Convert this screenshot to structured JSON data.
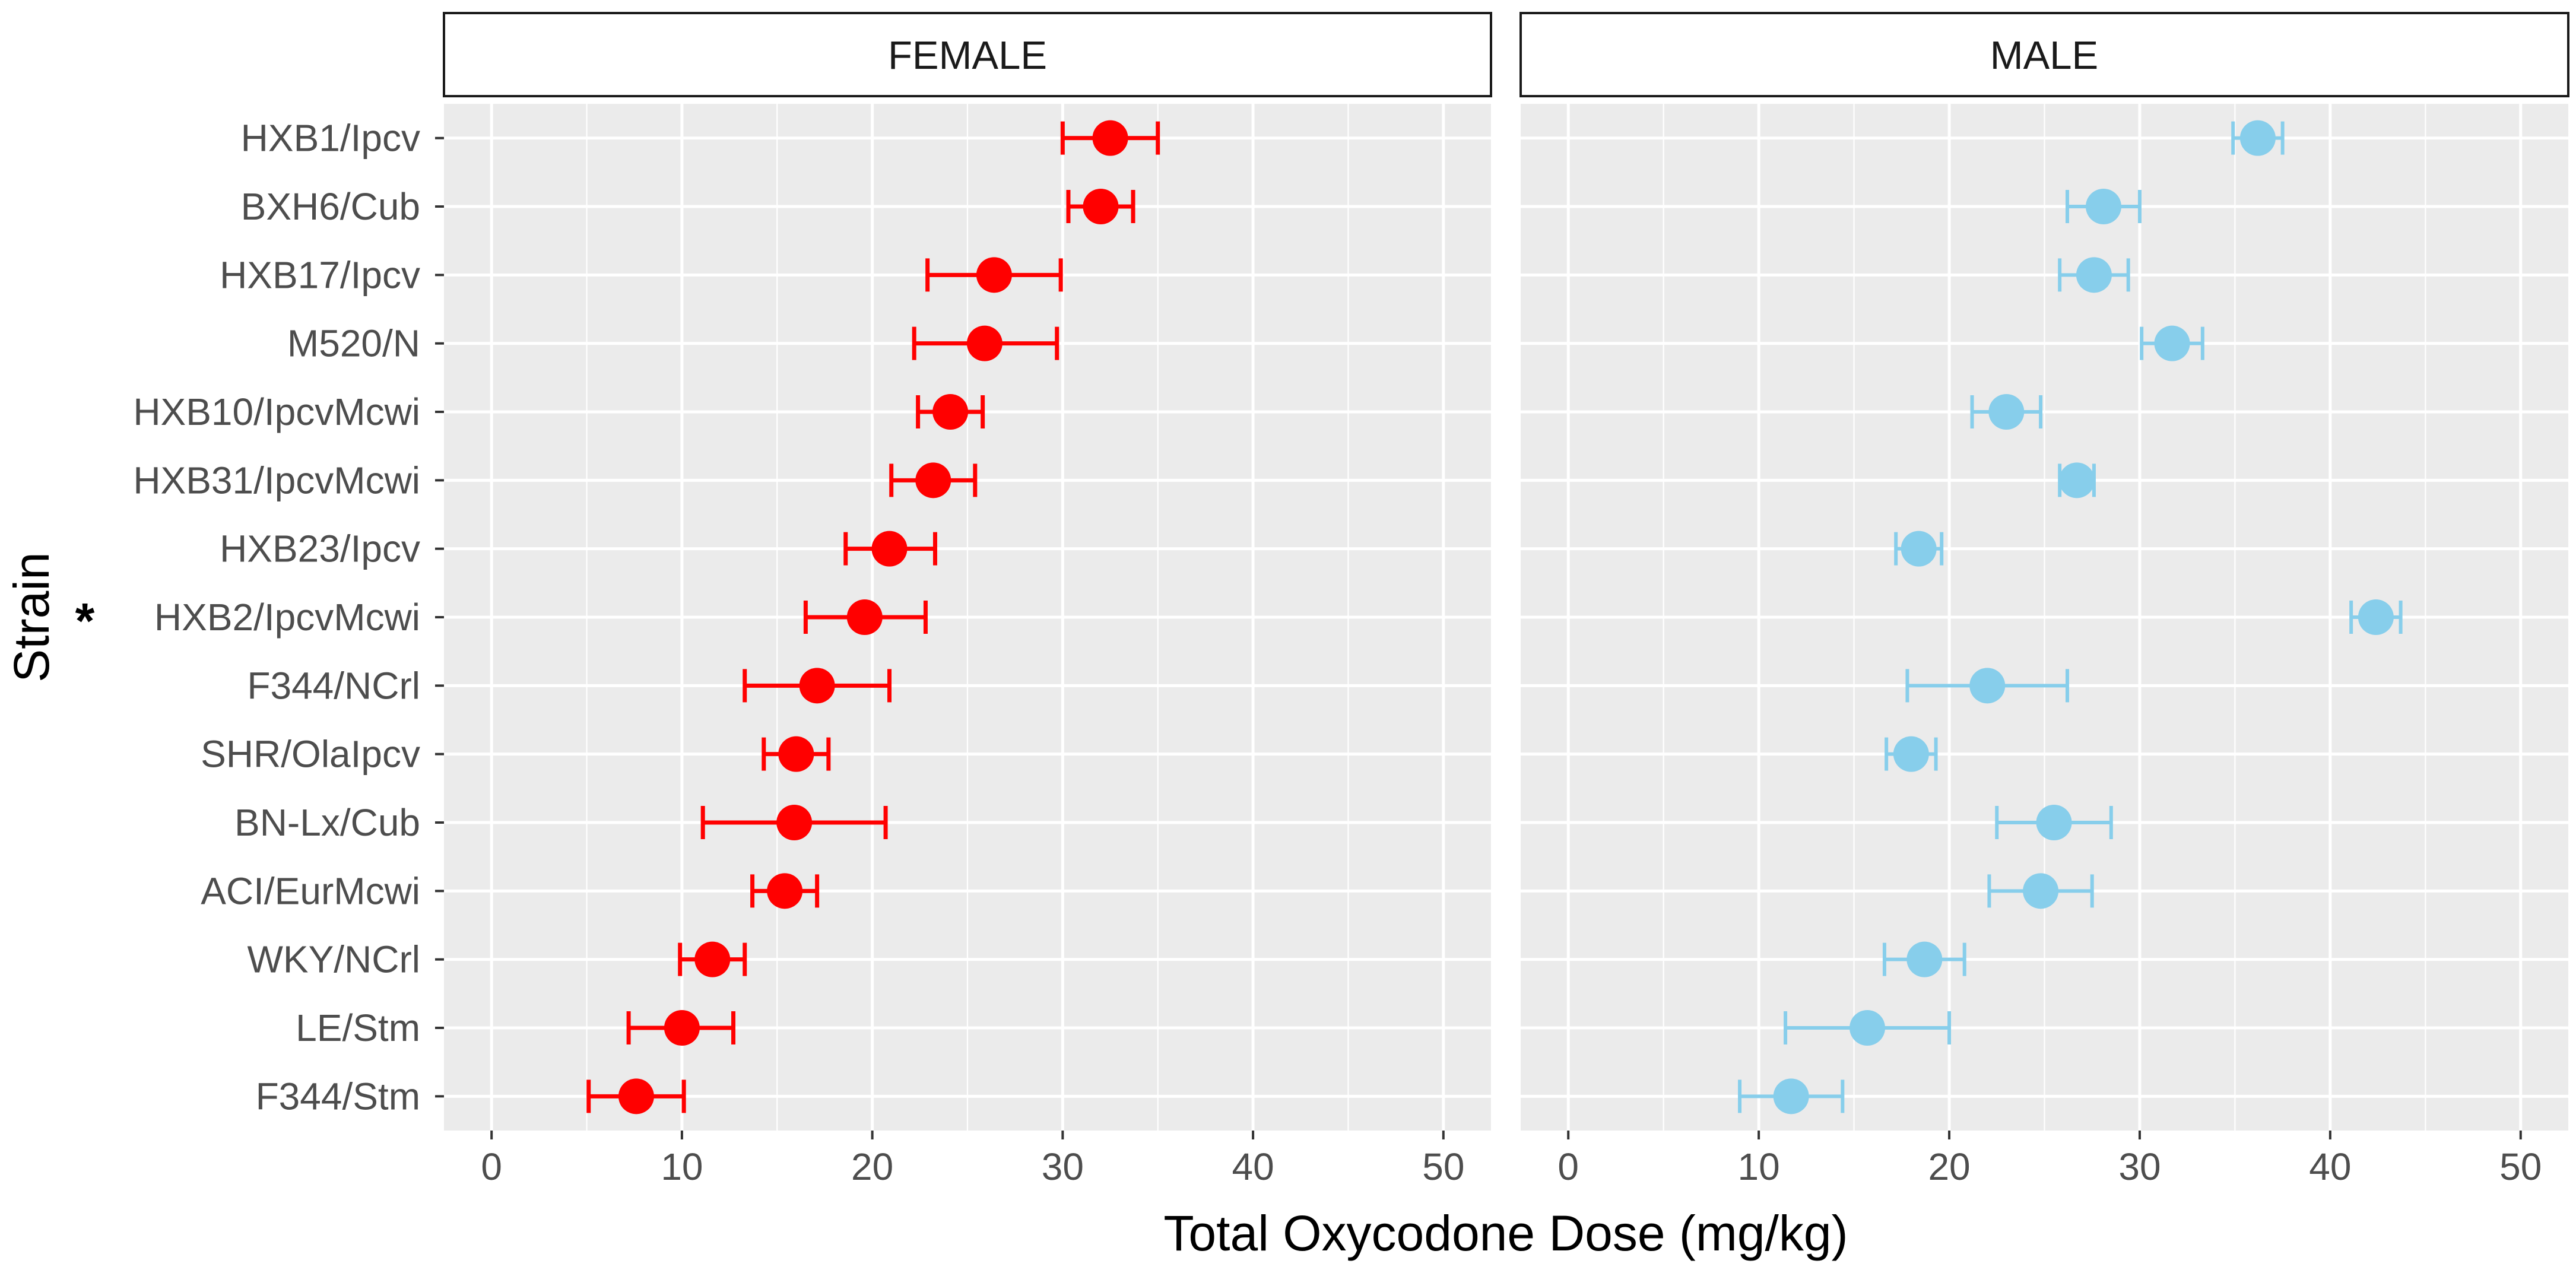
{
  "chart_data": {
    "type": "dot-errorbar",
    "panels": [
      "FEMALE",
      "MALE"
    ],
    "xlabel": "Total Oxycodone Dose (mg/kg)",
    "ylabel": "Strain",
    "xlim": [
      -2.5,
      52.5
    ],
    "x_ticks": [
      0,
      10,
      20,
      30,
      40,
      50
    ],
    "x_tick_labels": [
      "0",
      "10",
      "20",
      "30",
      "40",
      "50"
    ],
    "grid": true,
    "annotation": {
      "text": "*",
      "target": "HXB2/IpcvMcwi"
    },
    "categories": [
      "HXB1/Ipcv",
      "BXH6/Cub",
      "HXB17/Ipcv",
      "M520/N",
      "HXB10/IpcvMcwi",
      "HXB31/IpcvMcwi",
      "HXB23/Ipcv",
      "HXB2/IpcvMcwi",
      "F344/NCrl",
      "SHR/OlaIpcv",
      "BN-Lx/Cub",
      "ACI/EurMcwi",
      "WKY/NCrl",
      "LE/Stm",
      "F344/Stm"
    ],
    "series": [
      {
        "name": "FEMALE",
        "color": "#ff0000",
        "values": [
          32.5,
          32.0,
          26.4,
          25.9,
          24.1,
          23.2,
          20.9,
          19.6,
          17.1,
          16.0,
          15.9,
          15.4,
          11.6,
          10.0,
          7.6
        ],
        "lower": [
          30.0,
          30.3,
          22.9,
          22.2,
          22.4,
          21.0,
          18.6,
          16.5,
          13.3,
          14.3,
          11.1,
          13.7,
          9.9,
          7.2,
          5.1
        ],
        "upper": [
          35.0,
          33.7,
          29.9,
          29.7,
          25.8,
          25.4,
          23.3,
          22.8,
          20.9,
          17.7,
          20.7,
          17.1,
          13.3,
          12.7,
          10.1
        ]
      },
      {
        "name": "MALE",
        "color": "#87ceeb",
        "values": [
          36.2,
          28.1,
          27.6,
          31.7,
          23.0,
          26.7,
          18.4,
          42.4,
          22.0,
          18.0,
          25.5,
          24.8,
          18.7,
          15.7,
          11.7
        ],
        "lower": [
          34.9,
          26.2,
          25.8,
          30.1,
          21.2,
          25.8,
          17.2,
          41.1,
          17.8,
          16.7,
          22.5,
          22.1,
          16.6,
          11.4,
          9.0
        ],
        "upper": [
          37.5,
          30.0,
          29.4,
          33.3,
          24.8,
          27.6,
          19.6,
          43.7,
          26.2,
          19.3,
          28.5,
          27.5,
          20.8,
          20.0,
          14.4
        ]
      }
    ]
  }
}
